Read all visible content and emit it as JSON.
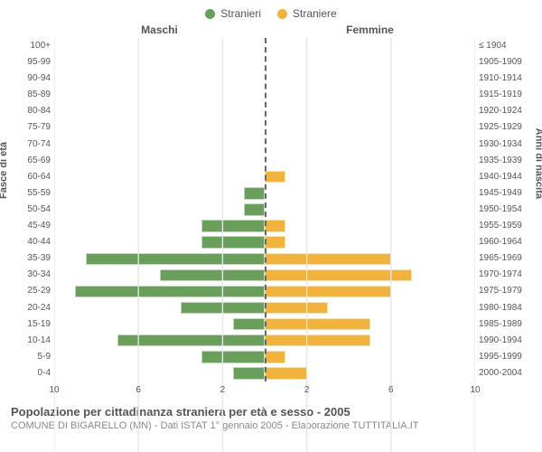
{
  "legend": {
    "male": {
      "label": "Stranieri",
      "color": "#6a9e5b"
    },
    "female": {
      "label": "Straniere",
      "color": "#f2b33d"
    }
  },
  "headers": {
    "left": "Maschi",
    "right": "Femmine"
  },
  "axis_titles": {
    "left": "Fasce di età",
    "right": "Anni di nascita"
  },
  "footer": {
    "title": "Popolazione per cittadinanza straniera per età e sesso - 2005",
    "subtitle": "COMUNE DI BIGARELLO (MN) - Dati ISTAT 1° gennaio 2005 - Elaborazione TUTTITALIA.IT"
  },
  "chart": {
    "type": "population-pyramid",
    "x_max": 10,
    "x_ticks": [
      10,
      6,
      2,
      2,
      6,
      10
    ],
    "grid_color": "#e6e6e6",
    "center_line_color": "#666666",
    "background_color": "#ffffff",
    "bar_height_pct": 74,
    "rows": [
      {
        "age": "100+",
        "birth": "≤ 1904",
        "m": 0,
        "f": 0
      },
      {
        "age": "95-99",
        "birth": "1905-1909",
        "m": 0,
        "f": 0
      },
      {
        "age": "90-94",
        "birth": "1910-1914",
        "m": 0,
        "f": 0
      },
      {
        "age": "85-89",
        "birth": "1915-1919",
        "m": 0,
        "f": 0
      },
      {
        "age": "80-84",
        "birth": "1920-1924",
        "m": 0,
        "f": 0
      },
      {
        "age": "75-79",
        "birth": "1925-1929",
        "m": 0,
        "f": 0
      },
      {
        "age": "70-74",
        "birth": "1930-1934",
        "m": 0,
        "f": 0
      },
      {
        "age": "65-69",
        "birth": "1935-1939",
        "m": 0,
        "f": 0
      },
      {
        "age": "60-64",
        "birth": "1940-1944",
        "m": 0,
        "f": 1
      },
      {
        "age": "55-59",
        "birth": "1945-1949",
        "m": 1,
        "f": 0
      },
      {
        "age": "50-54",
        "birth": "1950-1954",
        "m": 1,
        "f": 0
      },
      {
        "age": "45-49",
        "birth": "1955-1959",
        "m": 3,
        "f": 1
      },
      {
        "age": "40-44",
        "birth": "1960-1964",
        "m": 3,
        "f": 1
      },
      {
        "age": "35-39",
        "birth": "1965-1969",
        "m": 8.5,
        "f": 6
      },
      {
        "age": "30-34",
        "birth": "1970-1974",
        "m": 5,
        "f": 7
      },
      {
        "age": "25-29",
        "birth": "1975-1979",
        "m": 9,
        "f": 6
      },
      {
        "age": "20-24",
        "birth": "1980-1984",
        "m": 4,
        "f": 3
      },
      {
        "age": "15-19",
        "birth": "1985-1989",
        "m": 1.5,
        "f": 5
      },
      {
        "age": "10-14",
        "birth": "1990-1994",
        "m": 7,
        "f": 5
      },
      {
        "age": "5-9",
        "birth": "1995-1999",
        "m": 3,
        "f": 1
      },
      {
        "age": "0-4",
        "birth": "2000-2004",
        "m": 1.5,
        "f": 2
      }
    ]
  }
}
